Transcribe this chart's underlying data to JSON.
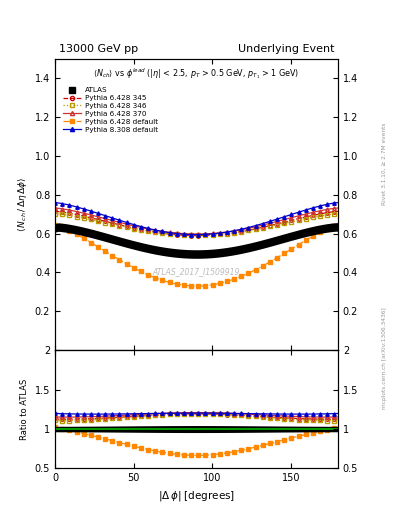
{
  "title_left": "13000 GeV pp",
  "title_right": "Underlying Event",
  "right_label_top": "Rivet 3.1.10, ≥ 2.7M events",
  "right_label_bot": "mcplots.cern.ch [arXiv:1306.3436]",
  "watermark": "ATLAS_2017_I1509919",
  "xlabel": "|\\u0394 \\u03c6| [degrees]",
  "ylim_main": [
    0.0,
    1.5
  ],
  "ylim_ratio": [
    0.5,
    2.0
  ],
  "yticks_main": [
    0.2,
    0.4,
    0.6,
    0.8,
    1.0,
    1.2,
    1.4
  ],
  "yticks_ratio": [
    0.5,
    1.0,
    1.5,
    2.0
  ],
  "xlim": [
    0,
    180
  ],
  "xticks": [
    0,
    50,
    100,
    150
  ],
  "series": [
    {
      "label": "ATLAS",
      "color": "#000000",
      "marker": "s",
      "linestyle": "none",
      "filled": true,
      "is_data": true
    },
    {
      "label": "Pythia 6.428 345",
      "color": "#cc0000",
      "marker": "o",
      "linestyle": "--",
      "filled": false
    },
    {
      "label": "Pythia 6.428 346",
      "color": "#bb9900",
      "marker": "s",
      "linestyle": ":",
      "filled": false
    },
    {
      "label": "Pythia 6.428 370",
      "color": "#cc3333",
      "marker": "^",
      "linestyle": "-",
      "filled": false
    },
    {
      "label": "Pythia 6.428 default",
      "color": "#ff8800",
      "marker": "s",
      "linestyle": "-.",
      "filled": true
    },
    {
      "label": "Pythia 8.308 default",
      "color": "#0000cc",
      "marker": "^",
      "linestyle": "-",
      "filled": true
    }
  ]
}
